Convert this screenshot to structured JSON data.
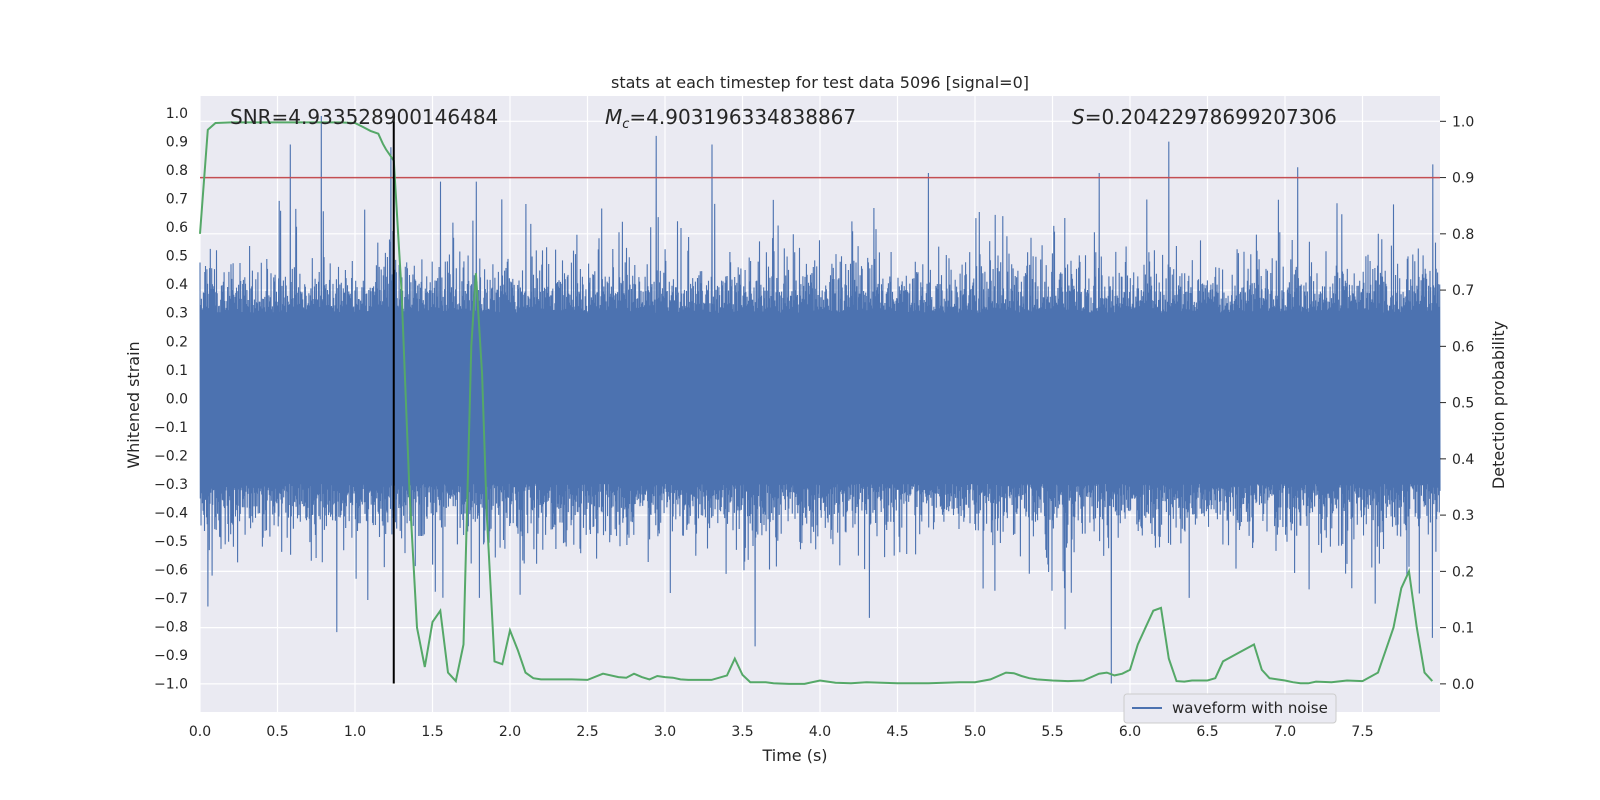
{
  "chart_data": {
    "type": "line",
    "title": "stats at each timestep for test data 5096 [signal=0]",
    "xlabel": "Time (s)",
    "ylabel_left": "Whitened strain",
    "ylabel_right": "Detection probability",
    "xlim": [
      0.0,
      8.0
    ],
    "ylim_left": [
      -1.1,
      1.06
    ],
    "ylim_right": [
      -0.05,
      1.045
    ],
    "x_ticks": [
      "0.0",
      "0.5",
      "1.0",
      "1.5",
      "2.0",
      "2.5",
      "3.0",
      "3.5",
      "4.0",
      "4.5",
      "5.0",
      "5.5",
      "6.0",
      "6.5",
      "7.0",
      "7.5"
    ],
    "x_tick_values": [
      0.0,
      0.5,
      1.0,
      1.5,
      2.0,
      2.5,
      3.0,
      3.5,
      4.0,
      4.5,
      5.0,
      5.5,
      6.0,
      6.5,
      7.0,
      7.5
    ],
    "y_left_ticks": [
      "1.0",
      "0.9",
      "0.8",
      "0.7",
      "0.6",
      "0.5",
      "0.4",
      "0.3",
      "0.2",
      "0.1",
      "0.0",
      "−0.1",
      "−0.2",
      "−0.3",
      "−0.4",
      "−0.5",
      "−0.6",
      "−0.7",
      "−0.8",
      "−0.9",
      "−1.0"
    ],
    "y_left_tick_values": [
      1.0,
      0.9,
      0.8,
      0.7,
      0.6,
      0.5,
      0.4,
      0.3,
      0.2,
      0.1,
      0.0,
      -0.1,
      -0.2,
      -0.3,
      -0.4,
      -0.5,
      -0.6,
      -0.7,
      -0.8,
      -0.9,
      -1.0
    ],
    "y_right_ticks": [
      "1.0",
      "0.9",
      "0.8",
      "0.7",
      "0.6",
      "0.5",
      "0.4",
      "0.3",
      "0.2",
      "0.1",
      "0.0"
    ],
    "y_right_tick_values": [
      1.0,
      0.9,
      0.8,
      0.7,
      0.6,
      0.5,
      0.4,
      0.3,
      0.2,
      0.1,
      0.0
    ],
    "annotations": {
      "snr": "SNR=4.933528900146484",
      "mc_symbol": "M",
      "mc_subscript": "c",
      "mc_value": "=4.903196334838867",
      "s_symbol": "S",
      "s_value": "=0.20422978699207306"
    },
    "threshold": {
      "value_right": 0.9,
      "color": "#c44e52"
    },
    "vertical_marker": {
      "x": 1.25,
      "y_range": [
        -1.0,
        1.0
      ],
      "color": "#000000"
    },
    "series": [
      {
        "name": "waveform with noise",
        "axis": "left",
        "color": "#4c72b0",
        "envelope": "dense noise, typical amplitude about ±0.4, sampled at 4096 Hz",
        "noise_seed": 5096,
        "peaks_positive": [
          [
            0.78,
            0.99
          ],
          [
            0.58,
            0.89
          ],
          [
            1.23,
            0.88
          ],
          [
            2.94,
            0.92
          ],
          [
            3.3,
            0.89
          ],
          [
            6.25,
            0.9
          ],
          [
            7.08,
            0.81
          ],
          [
            7.95,
            0.82
          ],
          [
            4.7,
            0.79
          ],
          [
            5.8,
            0.79
          ],
          [
            1.55,
            0.76
          ],
          [
            1.78,
            0.76
          ]
        ],
        "peaks_negative": [
          [
            5.88,
            -1.0
          ],
          [
            3.58,
            -0.87
          ],
          [
            0.88,
            -0.82
          ],
          [
            5.58,
            -0.81
          ],
          [
            7.95,
            -0.84
          ],
          [
            4.32,
            -0.77
          ],
          [
            1.8,
            -0.7
          ],
          [
            0.05,
            -0.73
          ],
          [
            6.38,
            -0.7
          ],
          [
            7.58,
            -0.72
          ]
        ]
      },
      {
        "name": "detection probability",
        "axis": "right",
        "color": "#55a868",
        "x": [
          0.0,
          0.05,
          0.1,
          0.2,
          0.3,
          0.4,
          0.5,
          0.6,
          0.7,
          0.8,
          0.9,
          1.0,
          1.05,
          1.1,
          1.15,
          1.18,
          1.2,
          1.25,
          1.3,
          1.35,
          1.4,
          1.45,
          1.5,
          1.55,
          1.6,
          1.65,
          1.7,
          1.75,
          1.78,
          1.82,
          1.85,
          1.9,
          1.95,
          2.0,
          2.05,
          2.1,
          2.15,
          2.2,
          2.25,
          2.3,
          2.4,
          2.5,
          2.6,
          2.7,
          2.75,
          2.8,
          2.85,
          2.9,
          2.95,
          3.0,
          3.05,
          3.1,
          3.15,
          3.2,
          3.3,
          3.4,
          3.45,
          3.5,
          3.55,
          3.6,
          3.65,
          3.7,
          3.8,
          3.9,
          4.0,
          4.1,
          4.2,
          4.3,
          4.4,
          4.5,
          4.6,
          4.7,
          4.8,
          4.9,
          5.0,
          5.1,
          5.2,
          5.25,
          5.3,
          5.35,
          5.4,
          5.5,
          5.6,
          5.7,
          5.8,
          5.85,
          5.9,
          5.95,
          6.0,
          6.05,
          6.1,
          6.15,
          6.2,
          6.25,
          6.3,
          6.35,
          6.4,
          6.45,
          6.5,
          6.55,
          6.6,
          6.7,
          6.8,
          6.85,
          6.9,
          6.95,
          7.0,
          7.05,
          7.1,
          7.15,
          7.2,
          7.3,
          7.4,
          7.5,
          7.6,
          7.65,
          7.7,
          7.75,
          7.8,
          7.85,
          7.9,
          7.95
        ],
        "values": [
          0.8,
          0.985,
          0.997,
          0.998,
          0.998,
          0.998,
          0.998,
          0.998,
          0.998,
          0.998,
          0.998,
          0.997,
          0.99,
          0.983,
          0.978,
          0.96,
          0.95,
          0.93,
          0.7,
          0.35,
          0.1,
          0.03,
          0.11,
          0.13,
          0.02,
          0.005,
          0.07,
          0.6,
          0.73,
          0.55,
          0.3,
          0.04,
          0.035,
          0.095,
          0.06,
          0.02,
          0.01,
          0.008,
          0.008,
          0.008,
          0.008,
          0.007,
          0.018,
          0.012,
          0.011,
          0.018,
          0.012,
          0.008,
          0.014,
          0.012,
          0.011,
          0.008,
          0.007,
          0.007,
          0.007,
          0.015,
          0.045,
          0.016,
          0.003,
          0.003,
          0.003,
          0.001,
          0.0,
          0.0,
          0.006,
          0.002,
          0.001,
          0.003,
          0.002,
          0.001,
          0.001,
          0.001,
          0.002,
          0.003,
          0.003,
          0.008,
          0.02,
          0.019,
          0.014,
          0.01,
          0.008,
          0.006,
          0.005,
          0.006,
          0.018,
          0.02,
          0.015,
          0.018,
          0.025,
          0.07,
          0.1,
          0.13,
          0.135,
          0.045,
          0.005,
          0.004,
          0.006,
          0.006,
          0.006,
          0.01,
          0.04,
          0.055,
          0.07,
          0.025,
          0.01,
          0.008,
          0.006,
          0.003,
          0.001,
          0.001,
          0.004,
          0.003,
          0.006,
          0.005,
          0.02,
          0.06,
          0.1,
          0.17,
          0.2,
          0.1,
          0.02,
          0.005
        ]
      }
    ],
    "legend": {
      "position": "bottom-right",
      "entries": [
        "waveform with noise"
      ]
    },
    "grid": true
  }
}
